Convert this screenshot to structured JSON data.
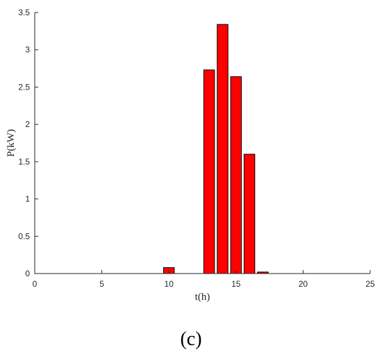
{
  "chart_data": {
    "type": "bar",
    "x": [
      10,
      13,
      14,
      15,
      16,
      17
    ],
    "values": [
      0.08,
      2.73,
      3.34,
      2.64,
      1.6,
      0.02
    ],
    "xlabel": "t(h)",
    "ylabel": "P(kW)",
    "xlim": [
      0,
      25
    ],
    "ylim": [
      0,
      3.5
    ],
    "xticks": [
      "0",
      "5",
      "10",
      "15",
      "20",
      "25"
    ],
    "yticks": [
      "0",
      "0.5",
      "1",
      "1.5",
      "2",
      "2.5",
      "3",
      "3.5"
    ],
    "bar_color": "#ff0000",
    "grid": false
  },
  "panel_label": "(c)"
}
